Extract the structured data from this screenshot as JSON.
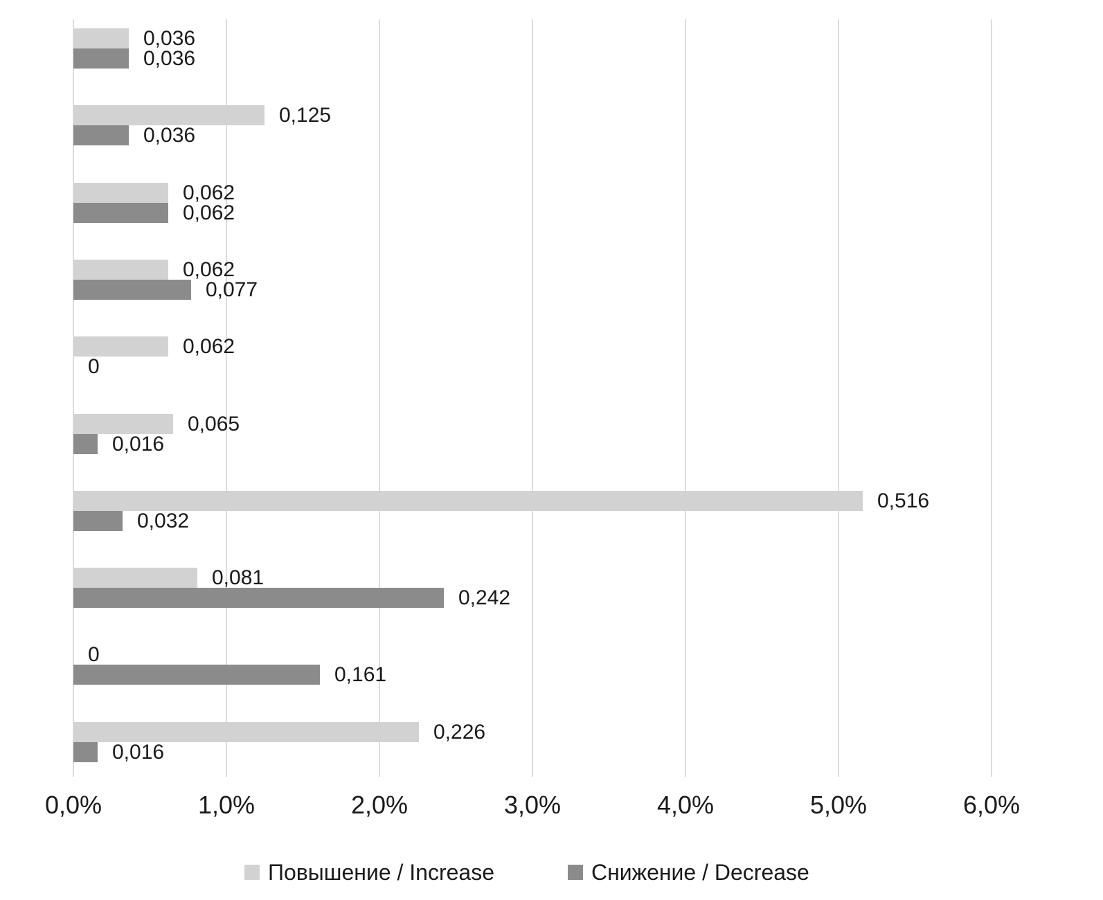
{
  "chart_data": {
    "type": "bar",
    "orientation": "horizontal",
    "title": "",
    "xlabel": "",
    "ylabel": "",
    "grid": "vertical",
    "n_groups": 10,
    "categories": [
      "",
      "",
      "",
      "",
      "",
      "",
      "",
      "",
      "",
      ""
    ],
    "series": [
      {
        "name": "Повышение / Increase",
        "color": "#d2d2d2",
        "values": [
          0.036,
          0.125,
          0.062,
          0.062,
          0.062,
          0.065,
          0.516,
          0.081,
          0,
          0.226
        ],
        "labels": [
          "0,036",
          "0,125",
          "0,062",
          "0,062",
          "0,062",
          "0,065",
          "0,516",
          "0,081",
          "0",
          "0,226"
        ]
      },
      {
        "name": "Снижение / Decrease",
        "color": "#8b8b8b",
        "values": [
          0.036,
          0.036,
          0.062,
          0.077,
          0,
          0.016,
          0.032,
          0.242,
          0.161,
          0.016
        ],
        "labels": [
          "0,036",
          "0,036",
          "0,062",
          "0,077",
          "0",
          "0,016",
          "0,032",
          "0,242",
          "0,161",
          "0,016"
        ]
      }
    ],
    "x_axis": {
      "tick_labels": [
        "0,0%",
        "1,0%",
        "2,0%",
        "3,0%",
        "4,0%",
        "5,0%",
        "6,0%"
      ],
      "min_pct": 0,
      "max_pct": 6,
      "bar_length_rule": "bar length in axis percent = data label value x 10"
    },
    "legend": {
      "position": "bottom",
      "items": [
        {
          "label": "Повышение / Increase",
          "color": "#d2d2d2"
        },
        {
          "label": "Снижение / Decrease",
          "color": "#8b8b8b"
        }
      ]
    },
    "colors": {
      "background": "#ffffff",
      "gridline": "#dcdcdc",
      "text": "#1a1a1a"
    }
  }
}
